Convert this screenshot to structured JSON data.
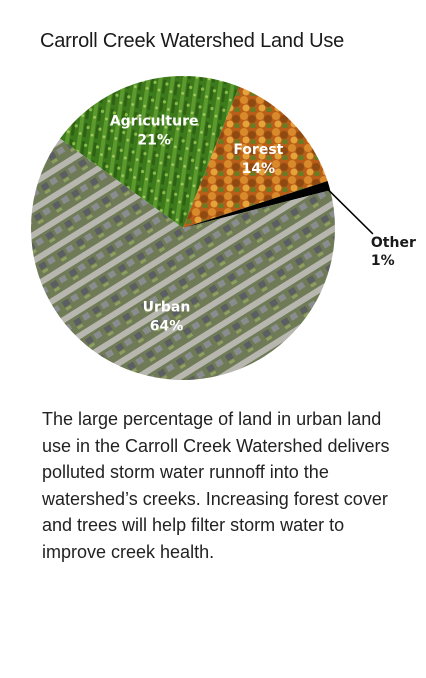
{
  "chart_data": {
    "type": "pie",
    "title": "Carroll Creek Watershed Land Use",
    "slices": [
      {
        "name": "Agriculture",
        "value": 21,
        "label": "21%",
        "color": "#3f7a1e"
      },
      {
        "name": "Forest",
        "value": 14,
        "label": "14%",
        "color": "#c0661a"
      },
      {
        "name": "Other",
        "value": 1,
        "label": "1%",
        "color": "#000000"
      },
      {
        "name": "Urban",
        "value": 64,
        "label": "64%",
        "color": "#7d8375"
      }
    ]
  },
  "caption": "The large percentage of land in urban land use in the Carroll Creek Watershed delivers polluted storm water runnoff into the watershed’s creeks. Increasing forest cover and trees will help filter storm water to improve creek health."
}
